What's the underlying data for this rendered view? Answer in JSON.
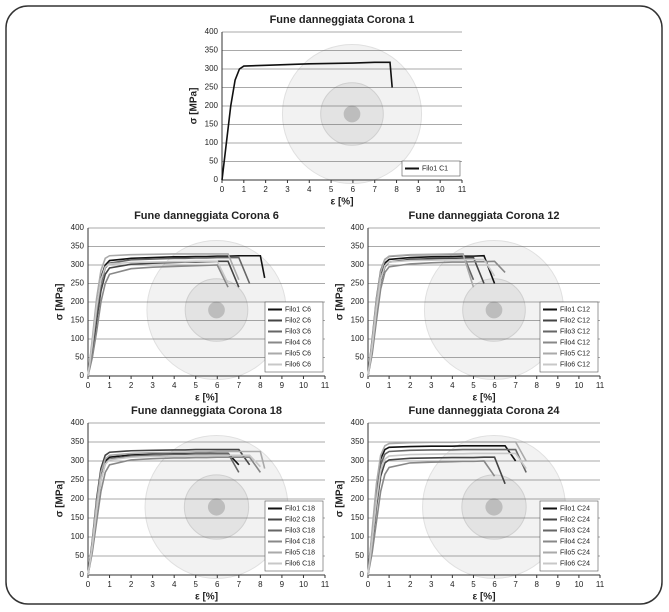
{
  "chart_data": [
    {
      "type": "line",
      "title": "Fune danneggiata Corona 1",
      "xlabel": "ε [%]",
      "ylabel": "σ [MPa]",
      "xlim": [
        0,
        11
      ],
      "ylim": [
        0,
        400
      ],
      "xticks": [
        0,
        1,
        2,
        3,
        4,
        5,
        6,
        7,
        8,
        9,
        10,
        11
      ],
      "yticks": [
        0,
        50,
        100,
        150,
        200,
        250,
        300,
        350,
        400
      ],
      "grid": true,
      "legend": "lower right",
      "x": [
        0,
        0.2,
        0.4,
        0.6,
        0.8,
        1,
        2,
        3,
        4,
        5,
        6,
        7,
        7.5,
        7.7,
        7.8
      ],
      "series": [
        {
          "name": "Filo1 C1",
          "color": "#111111",
          "values": [
            0,
            100,
            200,
            270,
            300,
            308,
            310,
            312,
            314,
            315,
            316,
            318,
            318,
            318,
            250
          ]
        }
      ]
    },
    {
      "type": "line",
      "title": "Fune danneggiata Corona 6",
      "xlabel": "ε [%]",
      "ylabel": "σ [MPa]",
      "xlim": [
        0,
        11
      ],
      "ylim": [
        0,
        400
      ],
      "xticks": [
        0,
        1,
        2,
        3,
        4,
        5,
        6,
        7,
        8,
        9,
        10,
        11
      ],
      "yticks": [
        0,
        50,
        100,
        150,
        200,
        250,
        300,
        350,
        400
      ],
      "grid": true,
      "legend": "lower right",
      "x": [
        0,
        0.2,
        0.4,
        0.6,
        0.8,
        1,
        2,
        3,
        4,
        4.5,
        5,
        5.5,
        6,
        6.5,
        7,
        7.5,
        8,
        8.2
      ],
      "series": [
        {
          "name": "Filo1 C6",
          "color": "#111111",
          "values": [
            0,
            90,
            190,
            265,
            300,
            312,
            318,
            320,
            322,
            322,
            323,
            323,
            324,
            324,
            325,
            325,
            325,
            265
          ]
        },
        {
          "name": "Filo2 C6",
          "color": "#444444",
          "values": [
            0,
            60,
            150,
            230,
            275,
            292,
            302,
            305,
            307,
            308,
            308,
            309,
            310,
            310,
            240,
            null,
            null,
            null
          ]
        },
        {
          "name": "Filo3 C6",
          "color": "#666666",
          "values": [
            0,
            80,
            170,
            250,
            292,
            305,
            314,
            316,
            318,
            318,
            319,
            319,
            320,
            320,
            320,
            250,
            null,
            null
          ]
        },
        {
          "name": "Filo4 C6",
          "color": "#888888",
          "values": [
            0,
            50,
            120,
            200,
            250,
            275,
            290,
            294,
            296,
            297,
            298,
            299,
            300,
            240,
            null,
            null,
            null,
            null
          ]
        },
        {
          "name": "Filo5 C6",
          "color": "#aaaaaa",
          "values": [
            0,
            100,
            210,
            285,
            318,
            325,
            328,
            329,
            330,
            330,
            330,
            330,
            330,
            330,
            260,
            null,
            null,
            null
          ]
        },
        {
          "name": "Filo6 C6",
          "color": "#c8c8c8",
          "values": [
            0,
            85,
            185,
            260,
            295,
            303,
            307,
            308,
            309,
            309,
            310,
            310,
            310,
            250,
            null,
            null,
            null,
            null
          ]
        }
      ]
    },
    {
      "type": "line",
      "title": "Fune danneggiata Corona 12",
      "xlabel": "ε [%]",
      "ylabel": "σ [MPa]",
      "xlim": [
        0,
        11
      ],
      "ylim": [
        0,
        400
      ],
      "xticks": [
        0,
        1,
        2,
        3,
        4,
        5,
        6,
        7,
        8,
        9,
        10,
        11
      ],
      "yticks": [
        0,
        50,
        100,
        150,
        200,
        250,
        300,
        350,
        400
      ],
      "grid": true,
      "legend": "lower right",
      "x": [
        0,
        0.2,
        0.4,
        0.6,
        0.8,
        1,
        2,
        3,
        4,
        4.5,
        5,
        5.5,
        6,
        6.5,
        7,
        7.5,
        8,
        8.2
      ],
      "series": [
        {
          "name": "Filo1 C12",
          "color": "#111111",
          "values": [
            0,
            90,
            200,
            275,
            305,
            315,
            320,
            322,
            323,
            324,
            324,
            325,
            250,
            null,
            null,
            null,
            null,
            null
          ]
        },
        {
          "name": "Filo2 C12",
          "color": "#444444",
          "values": [
            0,
            70,
            170,
            255,
            295,
            308,
            315,
            317,
            318,
            319,
            320,
            250,
            null,
            null,
            null,
            null,
            null,
            null
          ]
        },
        {
          "name": "Filo3 C12",
          "color": "#666666",
          "values": [
            0,
            100,
            210,
            285,
            315,
            323,
            327,
            328,
            329,
            330,
            260,
            null,
            null,
            null,
            null,
            null,
            null,
            null
          ]
        },
        {
          "name": "Filo4 C12",
          "color": "#888888",
          "values": [
            0,
            60,
            150,
            235,
            280,
            295,
            303,
            306,
            308,
            308,
            309,
            309,
            310,
            280,
            null,
            null,
            null,
            null
          ]
        },
        {
          "name": "Filo5 C12",
          "color": "#aaaaaa",
          "values": [
            0,
            95,
            205,
            280,
            315,
            324,
            328,
            329,
            330,
            330,
            240,
            null,
            null,
            null,
            null,
            null,
            null,
            null
          ]
        },
        {
          "name": "Filo6 C12",
          "color": "#c8c8c8",
          "values": [
            0,
            80,
            180,
            260,
            298,
            308,
            312,
            313,
            314,
            314,
            315,
            315,
            270,
            null,
            null,
            null,
            null,
            null
          ]
        }
      ]
    },
    {
      "type": "line",
      "title": "Fune danneggiata Corona 18",
      "xlabel": "ε [%]",
      "ylabel": "σ [MPa]",
      "xlim": [
        0,
        11
      ],
      "ylim": [
        0,
        400
      ],
      "xticks": [
        0,
        1,
        2,
        3,
        4,
        5,
        6,
        7,
        8,
        9,
        10,
        11
      ],
      "yticks": [
        0,
        50,
        100,
        150,
        200,
        250,
        300,
        350,
        400
      ],
      "grid": true,
      "legend": "lower right",
      "x": [
        0,
        0.2,
        0.4,
        0.6,
        0.8,
        1,
        2,
        3,
        4,
        4.5,
        5,
        5.5,
        6,
        6.5,
        7,
        7.5,
        8,
        8.2
      ],
      "series": [
        {
          "name": "Filo1 C18",
          "color": "#111111",
          "values": [
            0,
            80,
            180,
            260,
            300,
            310,
            316,
            318,
            319,
            319,
            320,
            320,
            320,
            320,
            290,
            null,
            null,
            null
          ]
        },
        {
          "name": "Filo2 C18",
          "color": "#444444",
          "values": [
            0,
            90,
            200,
            280,
            315,
            323,
            327,
            328,
            329,
            329,
            330,
            330,
            330,
            330,
            330,
            290,
            null,
            null
          ]
        },
        {
          "name": "Filo3 C18",
          "color": "#666666",
          "values": [
            0,
            70,
            170,
            250,
            292,
            305,
            313,
            316,
            318,
            318,
            319,
            319,
            320,
            320,
            270,
            null,
            null,
            null
          ]
        },
        {
          "name": "Filo4 C18",
          "color": "#888888",
          "values": [
            0,
            60,
            140,
            220,
            270,
            290,
            303,
            306,
            308,
            308,
            309,
            309,
            310,
            310,
            310,
            310,
            270,
            null
          ]
        },
        {
          "name": "Filo5 C18",
          "color": "#aaaaaa",
          "values": [
            0,
            85,
            190,
            270,
            305,
            315,
            320,
            322,
            323,
            323,
            324,
            324,
            325,
            325,
            325,
            325,
            325,
            280
          ]
        },
        {
          "name": "Filo6 C18",
          "color": "#c8c8c8",
          "values": [
            0,
            75,
            170,
            250,
            292,
            303,
            310,
            312,
            313,
            313,
            314,
            314,
            315,
            315,
            315,
            315,
            285,
            null
          ]
        }
      ]
    },
    {
      "type": "line",
      "title": "Fune danneggiata Corona 24",
      "xlabel": "ε [%]",
      "ylabel": "σ [MPa]",
      "xlim": [
        0,
        11
      ],
      "ylim": [
        0,
        400
      ],
      "xticks": [
        0,
        1,
        2,
        3,
        4,
        5,
        6,
        7,
        8,
        9,
        10,
        11
      ],
      "yticks": [
        0,
        50,
        100,
        150,
        200,
        250,
        300,
        350,
        400
      ],
      "grid": true,
      "legend": "lower right",
      "x": [
        0,
        0.2,
        0.4,
        0.6,
        0.8,
        1,
        2,
        3,
        4,
        4.5,
        5,
        5.5,
        6,
        6.5,
        7,
        7.5,
        8,
        8.2
      ],
      "series": [
        {
          "name": "Filo1 C24",
          "color": "#111111",
          "values": [
            0,
            110,
            230,
            305,
            330,
            336,
            338,
            339,
            339,
            340,
            340,
            340,
            340,
            340,
            300,
            null,
            null,
            null
          ]
        },
        {
          "name": "Filo2 C24",
          "color": "#444444",
          "values": [
            0,
            80,
            180,
            260,
            295,
            303,
            307,
            308,
            309,
            309,
            309,
            310,
            310,
            240,
            null,
            null,
            null,
            null
          ]
        },
        {
          "name": "Filo3 C24",
          "color": "#666666",
          "values": [
            0,
            100,
            215,
            290,
            318,
            325,
            328,
            329,
            329,
            330,
            330,
            330,
            330,
            330,
            330,
            270,
            null,
            null
          ]
        },
        {
          "name": "Filo4 C24",
          "color": "#888888",
          "values": [
            0,
            60,
            140,
            220,
            265,
            283,
            295,
            297,
            298,
            299,
            299,
            300,
            260,
            null,
            null,
            null,
            null,
            null
          ]
        },
        {
          "name": "Filo5 C24",
          "color": "#aaaaaa",
          "values": [
            0,
            120,
            240,
            315,
            340,
            346,
            348,
            349,
            349,
            350,
            350,
            350,
            350,
            350,
            350,
            300,
            null,
            null
          ]
        },
        {
          "name": "Filo6 C24",
          "color": "#c8c8c8",
          "values": [
            0,
            90,
            195,
            275,
            305,
            313,
            317,
            318,
            319,
            319,
            320,
            320,
            320,
            320,
            320,
            280,
            null,
            null
          ]
        }
      ]
    }
  ]
}
